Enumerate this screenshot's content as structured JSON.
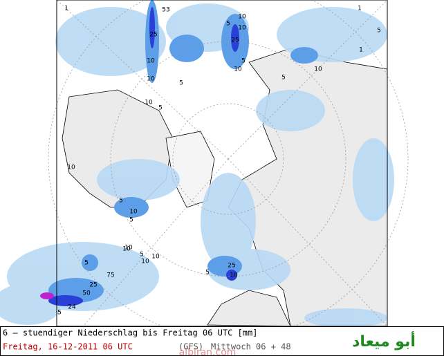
{
  "header": {
    "line1": "6 – stuendiger Niederschlag bis Freitag 06 UTC [mm]",
    "date": "Freitag, 16-12-2011   06 UTC",
    "model": "(GFS)",
    "run": "Mittwoch 06 + 48",
    "watermark": "albiran.com",
    "logo": "أبو ميعاد"
  },
  "map": {
    "contour_labels": [
      "1",
      "53",
      "25",
      "10",
      "10",
      "10",
      "5",
      "10",
      "5",
      "10",
      "25",
      "5",
      "10",
      "1",
      "5",
      "1",
      "10",
      "5",
      "5",
      "10",
      "5",
      "10",
      "5",
      "5",
      "10",
      "10",
      "25",
      "10",
      "75",
      "25",
      "50",
      "24",
      "5",
      "10",
      "5",
      "10",
      "5"
    ]
  }
}
